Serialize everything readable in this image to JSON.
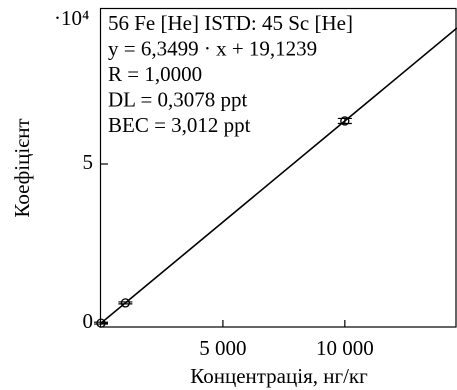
{
  "chart_data": {
    "type": "scatter",
    "x_label": "Концентрація, нг/кг",
    "y_label": "Коефіцієнт",
    "y_offset_label": "·10⁴",
    "annotations": [
      "56 Fe [He] ISTD: 45 Sc [He]",
      "y = 6,3499 · x + 19,1239",
      "R = 1,0000",
      "DL = 0,3078 ppt",
      "BEC = 3,012 ppt"
    ],
    "x": [
      0,
      1000,
      10000
    ],
    "values": [
      19,
      6369,
      63518
    ],
    "errors": [
      300,
      300,
      800
    ],
    "color": "#000000",
    "fit": {
      "x": [
        0,
        14600
      ],
      "values": [
        19,
        92728
      ]
    },
    "xlim": [
      0,
      14600
    ],
    "ylim": [
      -1200,
      99000
    ],
    "xticks": [
      {
        "value": 5000,
        "label": "5 000"
      },
      {
        "value": 10000,
        "label": "10 000"
      }
    ],
    "yticks": [
      0,
      {
        "value": 50000,
        "label": "5"
      }
    ]
  }
}
